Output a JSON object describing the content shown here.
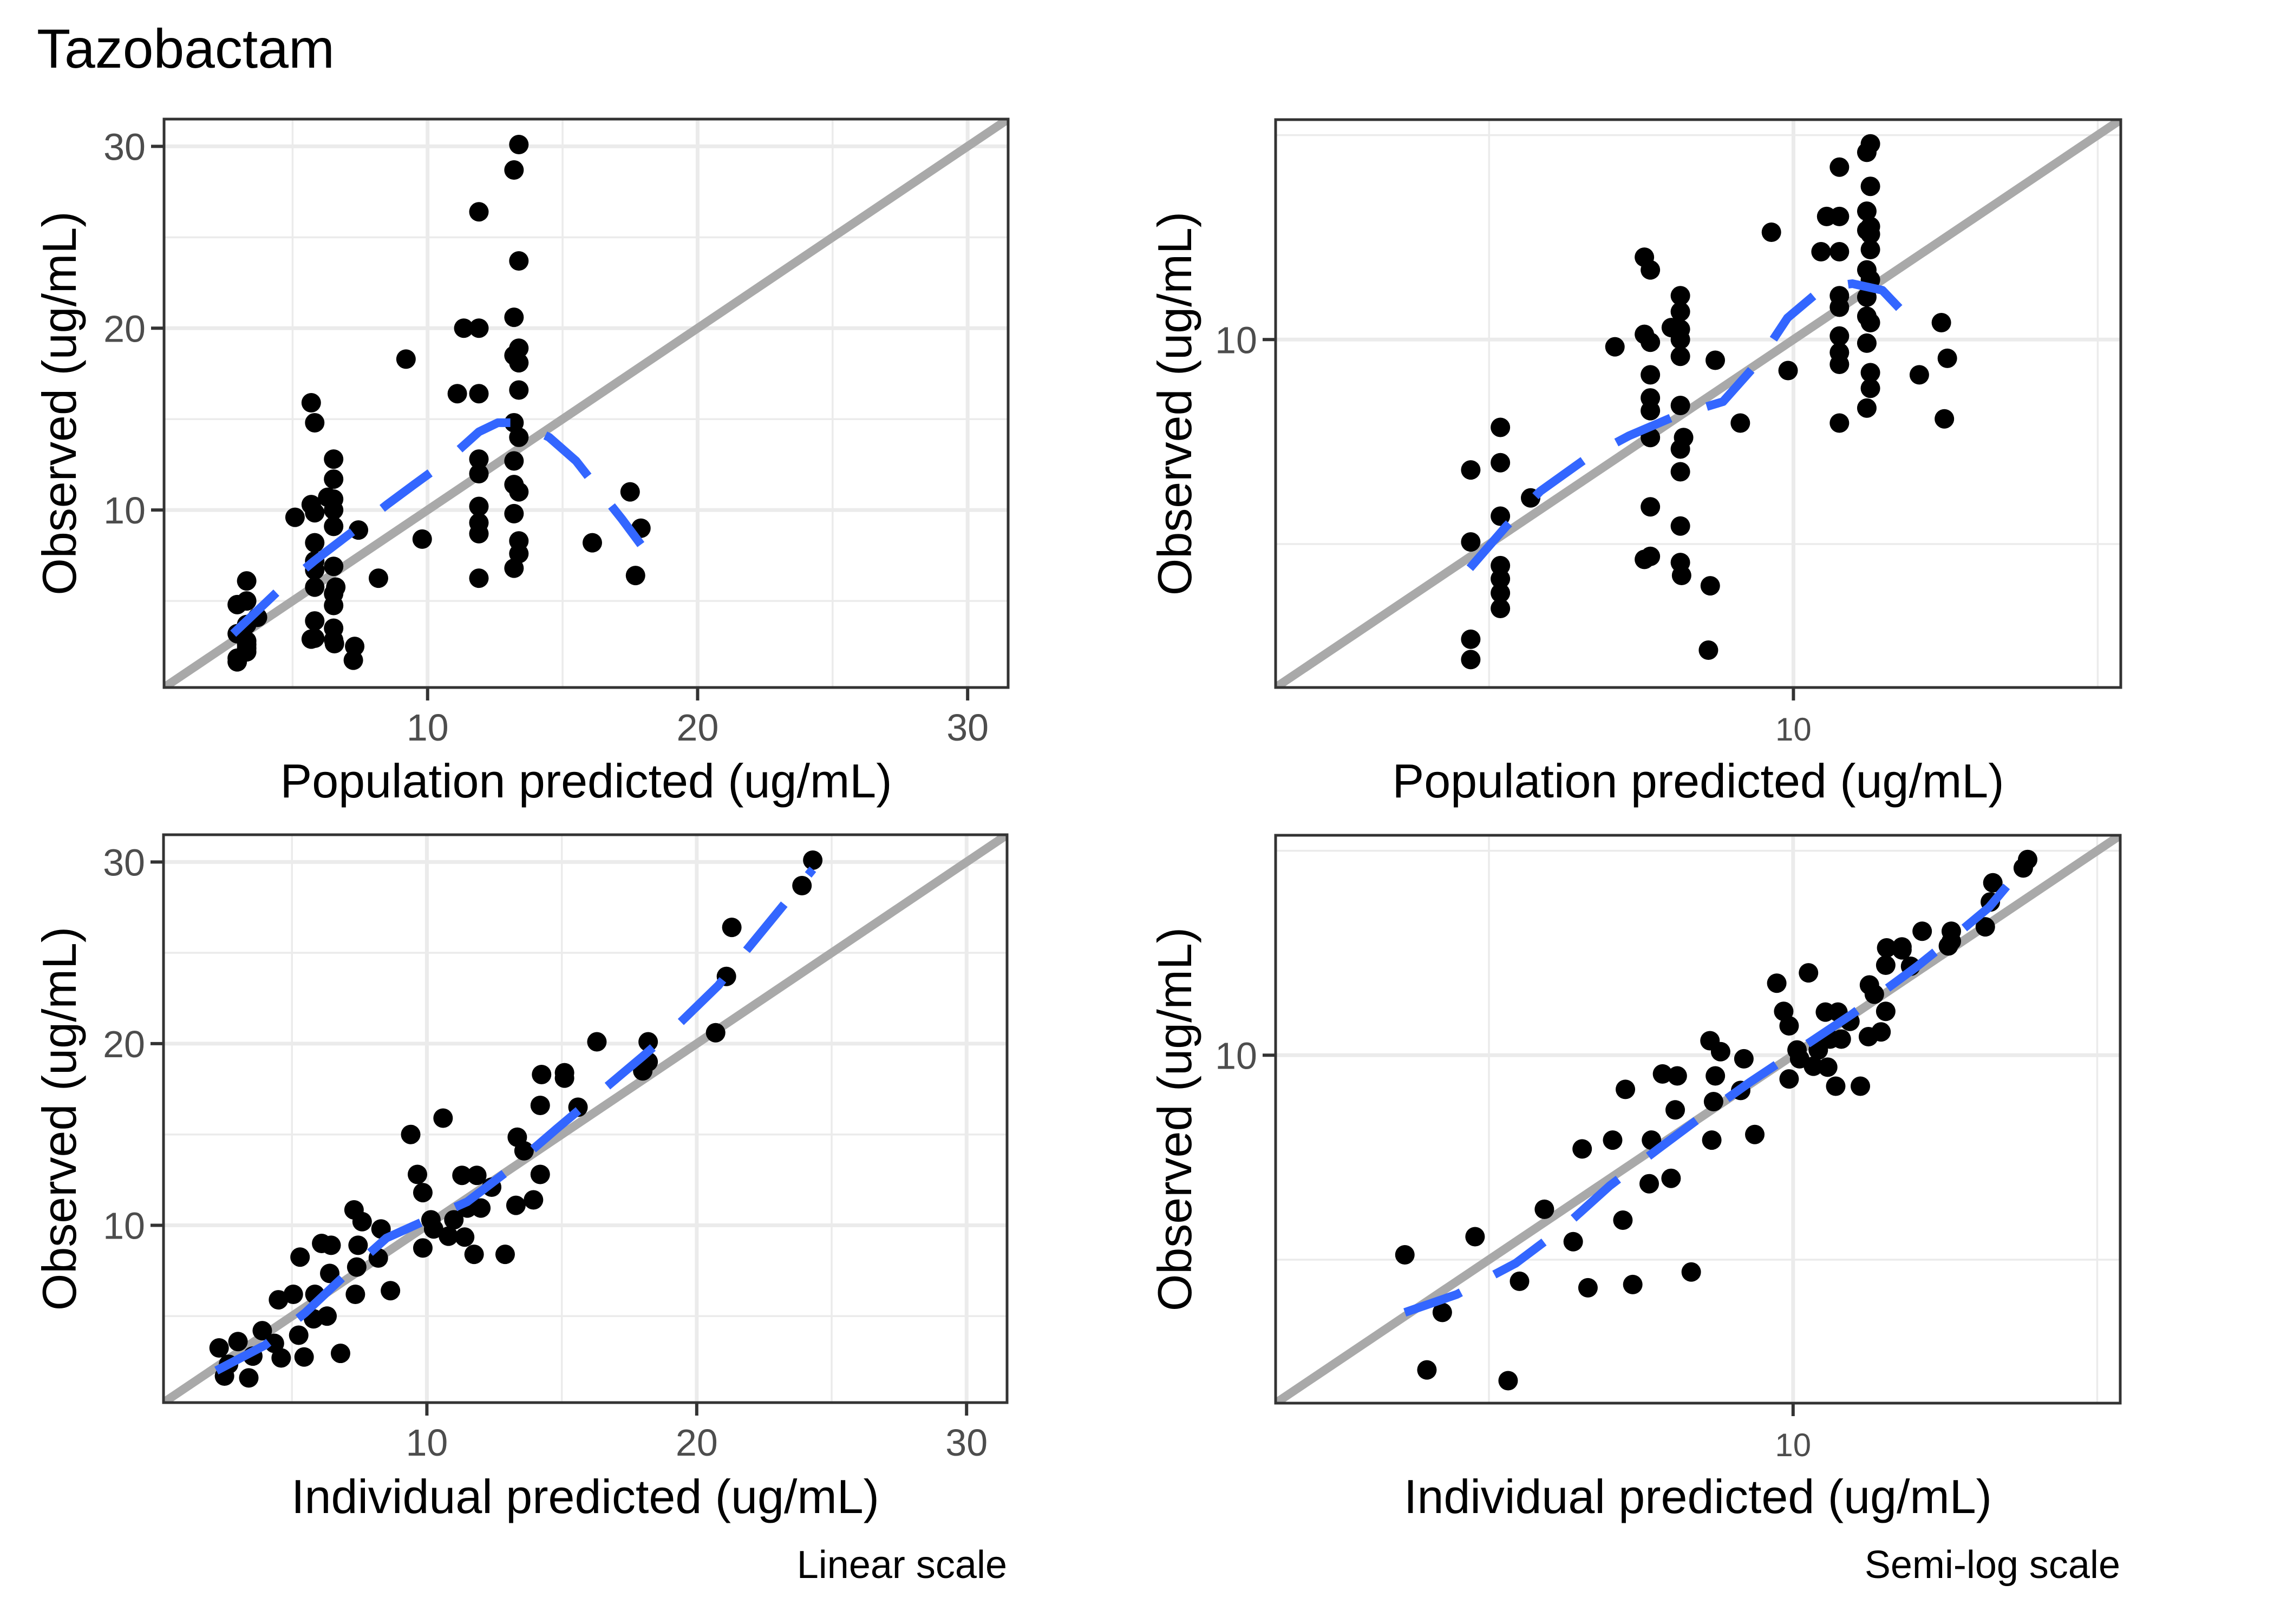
{
  "title": "Tazobactam",
  "colors": {
    "points": "#000000",
    "identity_line": "#A9A9A9",
    "smooth_line": "#3366FF",
    "grid": "#EBEBEB",
    "border": "#333333",
    "tick_text": "#4D4D4D"
  },
  "captions": {
    "linear": "Linear scale",
    "semilog": "Semi-log scale"
  },
  "chart_data": [
    {
      "id": "pred-linear",
      "type": "scatter",
      "title": "",
      "xlabel": "Population predicted (ug/mL)",
      "ylabel": "Observed (ug/mL)",
      "scale": "linear",
      "xlim": [
        0.24,
        31.5
      ],
      "ylim": [
        0.24,
        31.5
      ],
      "x_ticks": [
        10,
        20,
        30
      ],
      "y_ticks": [
        10,
        20,
        30
      ],
      "x_tick_labels": [
        "10",
        "20",
        "30"
      ],
      "y_tick_labels": [
        "10",
        "20",
        "30"
      ],
      "x_minor": [
        5,
        15,
        25
      ],
      "y_minor": [
        5,
        15,
        25
      ],
      "grid": true,
      "points_ref": "pred",
      "identity_line": true,
      "smooth": [
        [
          2.8,
          3.2
        ],
        [
          4.5,
          5.6
        ],
        [
          5.8,
          7.2
        ],
        [
          7.3,
          8.9
        ],
        [
          8.5,
          10.3
        ],
        [
          9.5,
          11.4
        ],
        [
          10.7,
          12.7
        ],
        [
          11.9,
          14.3
        ],
        [
          12.6,
          14.8
        ],
        [
          13.4,
          14.8
        ],
        [
          14.5,
          14.0
        ],
        [
          15.5,
          12.7
        ],
        [
          16.5,
          10.8
        ],
        [
          17.2,
          9.5
        ],
        [
          17.9,
          8.1
        ]
      ]
    },
    {
      "id": "pred-log",
      "type": "scatter",
      "title": "",
      "xlabel": "Population predicted (ug/mL)",
      "ylabel": "Observed (ug/mL)",
      "scale": "log10",
      "xlim": [
        1.41,
        34.5
      ],
      "ylim": [
        1.41,
        34.5
      ],
      "x_ticks": [
        10
      ],
      "y_ticks": [
        10
      ],
      "x_tick_labels": [
        "10"
      ],
      "y_tick_labels": [
        "10"
      ],
      "x_minor": [
        3.162,
        31.62
      ],
      "y_minor": [
        3.162,
        31.62
      ],
      "grid": true,
      "points_ref": "pred",
      "identity_line": true,
      "smooth": [
        [
          2.94,
          2.76
        ],
        [
          3.37,
          3.49
        ],
        [
          3.84,
          4.26
        ],
        [
          4.54,
          5.09
        ],
        [
          5.36,
          5.81
        ],
        [
          6.41,
          6.51
        ],
        [
          7.66,
          7.05
        ],
        [
          8.75,
          8.8
        ],
        [
          9.78,
          11.3
        ],
        [
          11.2,
          13.4
        ],
        [
          12.5,
          13.7
        ],
        [
          14.0,
          13.2
        ],
        [
          16.0,
          10.7
        ]
      ]
    },
    {
      "id": "ipred-linear",
      "type": "scatter",
      "title": "",
      "xlabel": "Individual predicted (ug/mL)",
      "ylabel": "Observed (ug/mL)",
      "scale": "linear",
      "xlim": [
        0.24,
        31.5
      ],
      "ylim": [
        0.24,
        31.5
      ],
      "x_ticks": [
        10,
        20,
        30
      ],
      "y_ticks": [
        10,
        20,
        30
      ],
      "x_tick_labels": [
        "10",
        "20",
        "30"
      ],
      "y_tick_labels": [
        "10",
        "20",
        "30"
      ],
      "x_minor": [
        5,
        15,
        25
      ],
      "y_minor": [
        5,
        15,
        25
      ],
      "grid": true,
      "points_ref": "ipred",
      "identity_line": true,
      "smooth": [
        [
          2.2,
          2.0
        ],
        [
          4.0,
          3.4
        ],
        [
          5.5,
          5.2
        ],
        [
          7.0,
          7.3
        ],
        [
          8.5,
          9.3
        ],
        [
          10.0,
          10.3
        ],
        [
          11.5,
          11.3
        ],
        [
          13.0,
          13.0
        ],
        [
          14.8,
          15.3
        ],
        [
          16.0,
          16.8
        ],
        [
          18.0,
          19.3
        ],
        [
          19.0,
          20.6
        ],
        [
          20.8,
          23.2
        ],
        [
          21.6,
          24.7
        ],
        [
          23.2,
          27.6
        ],
        [
          24.3,
          29.6
        ]
      ]
    },
    {
      "id": "ipred-log",
      "type": "scatter",
      "title": "",
      "xlabel": "Individual predicted (ug/mL)",
      "ylabel": "Observed (ug/mL)",
      "scale": "log10",
      "xlim": [
        1.41,
        34.5
      ],
      "ylim": [
        1.41,
        34.5
      ],
      "x_ticks": [
        10
      ],
      "y_ticks": [
        10
      ],
      "x_tick_labels": [
        "10"
      ],
      "y_tick_labels": [
        "10"
      ],
      "x_minor": [
        3.162,
        31.62
      ],
      "y_minor": [
        3.162,
        31.62
      ],
      "grid": true,
      "points_ref": "ipred",
      "identity_line": true,
      "smooth": [
        [
          2.3,
          2.35
        ],
        [
          2.8,
          2.6
        ],
        [
          3.5,
          3.1
        ],
        [
          4.2,
          3.8
        ],
        [
          5.0,
          4.8
        ],
        [
          6.0,
          5.9
        ],
        [
          7.0,
          7.0
        ],
        [
          8.5,
          8.6
        ],
        [
          9.8,
          9.9
        ],
        [
          11.0,
          11.1
        ],
        [
          12.5,
          12.6
        ],
        [
          16.0,
          16.5
        ],
        [
          18.0,
          19.0
        ],
        [
          21.0,
          23.0
        ],
        [
          24.3,
          29.8
        ]
      ]
    }
  ],
  "points": {
    "pred": [
      [
        2.95,
        4.8
      ],
      [
        2.95,
        3.2
      ],
      [
        2.95,
        1.85
      ],
      [
        2.95,
        1.65
      ],
      [
        3.3,
        6.1
      ],
      [
        3.3,
        5.0
      ],
      [
        3.3,
        3.7
      ],
      [
        3.3,
        2.8
      ],
      [
        3.3,
        2.6
      ],
      [
        3.3,
        2.4
      ],
      [
        3.3,
        2.2
      ],
      [
        3.7,
        4.1
      ],
      [
        5.09,
        9.6
      ],
      [
        5.69,
        15.9
      ],
      [
        5.82,
        14.8
      ],
      [
        5.69,
        10.3
      ],
      [
        5.82,
        9.85
      ],
      [
        5.82,
        8.2
      ],
      [
        5.82,
        7.2
      ],
      [
        5.82,
        6.7
      ],
      [
        5.82,
        5.76
      ],
      [
        5.82,
        3.9
      ],
      [
        5.69,
        2.9
      ],
      [
        5.82,
        2.95
      ],
      [
        6.52,
        12.8
      ],
      [
        6.52,
        11.7
      ],
      [
        6.52,
        10.6
      ],
      [
        6.3,
        10.7
      ],
      [
        6.52,
        10.0
      ],
      [
        6.52,
        9.1
      ],
      [
        6.52,
        6.9
      ],
      [
        6.6,
        5.76
      ],
      [
        6.52,
        5.4
      ],
      [
        6.52,
        4.75
      ],
      [
        6.52,
        3.5
      ],
      [
        6.52,
        2.85
      ],
      [
        6.55,
        2.65
      ],
      [
        7.44,
        8.9
      ],
      [
        8.18,
        6.25
      ],
      [
        7.3,
        2.5
      ],
      [
        7.25,
        1.74
      ],
      [
        9.2,
        18.3
      ],
      [
        9.8,
        8.4
      ],
      [
        13.38,
        30.1
      ],
      [
        13.2,
        28.7
      ],
      [
        11.9,
        26.4
      ],
      [
        13.38,
        23.7
      ],
      [
        13.2,
        20.6
      ],
      [
        11.34,
        20.0
      ],
      [
        11.9,
        20.0
      ],
      [
        13.38,
        18.9
      ],
      [
        13.2,
        18.5
      ],
      [
        13.38,
        18.1
      ],
      [
        11.1,
        16.4
      ],
      [
        11.9,
        16.4
      ],
      [
        13.38,
        16.6
      ],
      [
        13.2,
        14.8
      ],
      [
        13.38,
        14.0
      ],
      [
        11.9,
        12.8
      ],
      [
        13.2,
        12.7
      ],
      [
        11.9,
        12.0
      ],
      [
        13.2,
        11.4
      ],
      [
        13.38,
        11.0
      ],
      [
        13.2,
        9.8
      ],
      [
        11.9,
        10.2
      ],
      [
        11.9,
        9.3
      ],
      [
        11.9,
        8.7
      ],
      [
        13.38,
        8.3
      ],
      [
        13.38,
        7.6
      ],
      [
        13.2,
        6.8
      ],
      [
        11.9,
        6.25
      ],
      [
        17.5,
        11.0
      ],
      [
        17.9,
        9.0
      ],
      [
        16.1,
        8.2
      ],
      [
        17.7,
        6.4
      ]
    ],
    "ipred": [
      [
        24.3,
        30.1
      ],
      [
        23.9,
        28.7
      ],
      [
        21.3,
        26.4
      ],
      [
        21.1,
        23.7
      ],
      [
        20.7,
        20.6
      ],
      [
        16.3,
        20.1
      ],
      [
        18.2,
        20.1
      ],
      [
        18.0,
        18.5
      ],
      [
        18.2,
        19.0
      ],
      [
        14.25,
        18.3
      ],
      [
        15.1,
        18.4
      ],
      [
        15.1,
        18.1
      ],
      [
        14.2,
        16.6
      ],
      [
        15.6,
        16.5
      ],
      [
        10.6,
        15.9
      ],
      [
        9.4,
        15.0
      ],
      [
        13.35,
        14.85
      ],
      [
        13.6,
        14.1
      ],
      [
        9.65,
        12.8
      ],
      [
        9.85,
        11.8
      ],
      [
        11.3,
        12.75
      ],
      [
        11.85,
        12.75
      ],
      [
        12.4,
        12.1
      ],
      [
        14.2,
        12.8
      ],
      [
        13.3,
        11.1
      ],
      [
        13.95,
        11.4
      ],
      [
        12.0,
        10.95
      ],
      [
        11.5,
        10.95
      ],
      [
        10.15,
        10.3
      ],
      [
        11.0,
        10.3
      ],
      [
        10.25,
        9.8
      ],
      [
        10.8,
        9.4
      ],
      [
        11.4,
        9.35
      ],
      [
        9.85,
        8.75
      ],
      [
        11.75,
        8.4
      ],
      [
        12.9,
        8.4
      ],
      [
        8.3,
        9.8
      ],
      [
        7.3,
        10.85
      ],
      [
        7.6,
        10.2
      ],
      [
        7.45,
        8.9
      ],
      [
        6.45,
        8.9
      ],
      [
        6.1,
        9.0
      ],
      [
        5.3,
        8.25
      ],
      [
        8.2,
        8.2
      ],
      [
        6.4,
        7.35
      ],
      [
        7.4,
        7.7
      ],
      [
        8.65,
        6.4
      ],
      [
        7.35,
        6.2
      ],
      [
        5.85,
        6.2
      ],
      [
        5.05,
        6.2
      ],
      [
        4.5,
        5.9
      ],
      [
        6.3,
        5.0
      ],
      [
        5.8,
        4.85
      ],
      [
        5.25,
        3.95
      ],
      [
        5.45,
        2.75
      ],
      [
        6.8,
        2.95
      ],
      [
        4.35,
        3.5
      ],
      [
        4.6,
        2.7
      ],
      [
        3.9,
        4.2
      ],
      [
        2.3,
        3.25
      ],
      [
        2.5,
        1.7
      ],
      [
        3.4,
        1.6
      ],
      [
        2.65,
        2.35
      ],
      [
        3.55,
        2.8
      ],
      [
        3.0,
        3.6
      ]
    ]
  }
}
